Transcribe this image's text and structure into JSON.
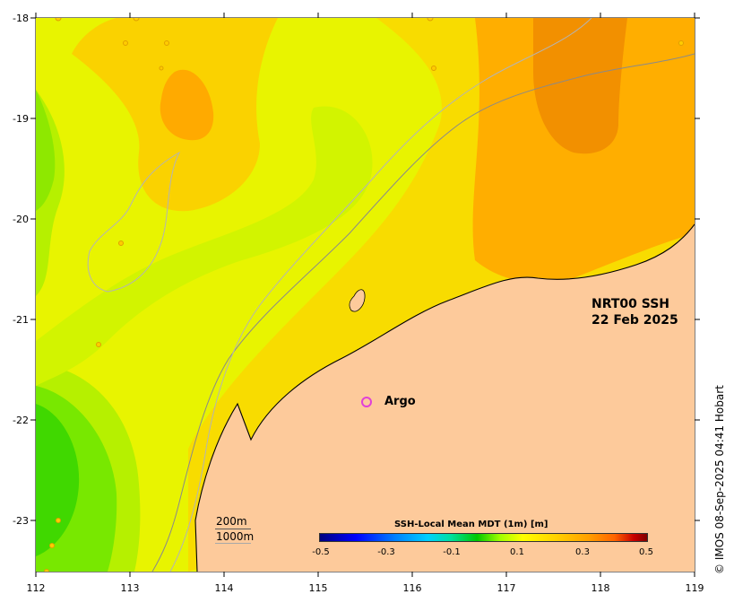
{
  "map": {
    "title_line1": "NRT00 SSH",
    "title_line2": "22 Feb 2025",
    "x_ticks": [
      "112",
      "113",
      "114",
      "115",
      "116",
      "117",
      "118",
      "119"
    ],
    "y_ticks": [
      "-18",
      "-19",
      "-20",
      "-21",
      "-22",
      "-23"
    ],
    "land_color": "#fdca9b",
    "argo_label": "Argo",
    "argo_marker_color": "#e040d8"
  },
  "legend": {
    "depth_200": "200m",
    "depth_1000": "1000m"
  },
  "colorbar": {
    "title": "SSH-Local Mean MDT (1m) [m]",
    "ticks": [
      "-0.5",
      "-0.3",
      "-0.1",
      "0.1",
      "0.3",
      "0.5"
    ],
    "range": [
      -0.5,
      0.5
    ]
  },
  "credit": "© IMOS 08-Sep-2025 04:41 Hobart"
}
